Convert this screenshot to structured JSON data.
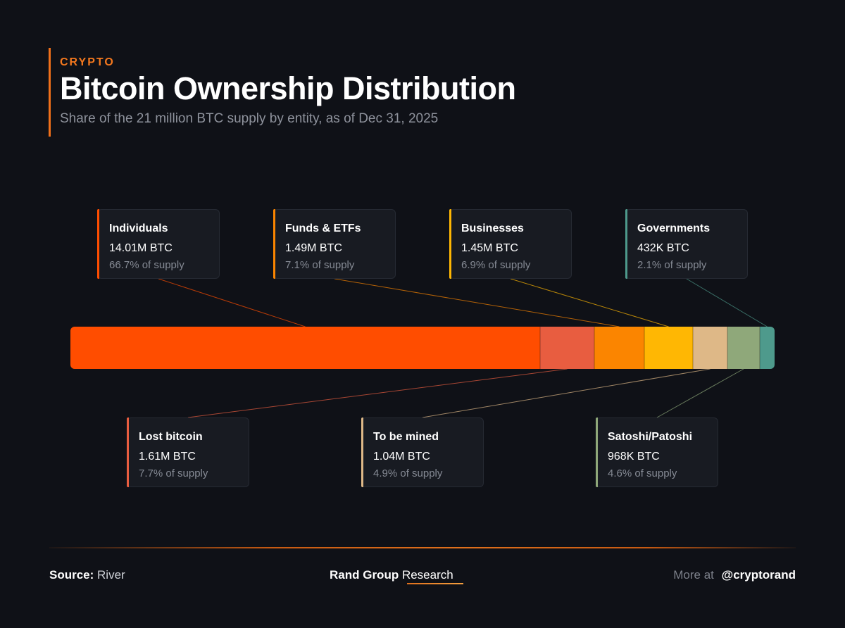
{
  "header": {
    "kicker": "CRYPTO",
    "title": "Bitcoin Ownership Distribution",
    "subtitle": "Share of the 21 million BTC supply by entity, as of Dec 31, 2025"
  },
  "chart_data": {
    "type": "bar",
    "orientation": "horizontal-stacked",
    "total_supply_btc_millions": 21,
    "segments": [
      {
        "name": "Individuals",
        "amount": "14.01M BTC",
        "share_label": "66.7% of supply",
        "percent": 66.7,
        "color": "#ff4d00"
      },
      {
        "name": "Lost bitcoin",
        "amount": "1.61M BTC",
        "share_label": "7.7% of supply",
        "percent": 7.7,
        "color": "#e85d40"
      },
      {
        "name": "Funds & ETFs",
        "amount": "1.49M BTC",
        "share_label": "7.1% of supply",
        "percent": 7.1,
        "color": "#fb8500"
      },
      {
        "name": "Businesses",
        "amount": "1.45M BTC",
        "share_label": "6.9% of supply",
        "percent": 6.9,
        "color": "#ffb703"
      },
      {
        "name": "To be mined",
        "amount": "1.04M BTC",
        "share_label": "4.9% of supply",
        "percent": 4.9,
        "color": "#deb887"
      },
      {
        "name": "Satoshi/Patoshi",
        "amount": "968K BTC",
        "share_label": "4.6% of supply",
        "percent": 4.6,
        "color": "#8fa87a"
      },
      {
        "name": "Governments",
        "amount": "432K BTC",
        "share_label": "2.1% of supply",
        "percent": 2.1,
        "color": "#4e9a8c"
      }
    ]
  },
  "footer": {
    "source_label": "Source:",
    "source_value": "River",
    "brand_bold": "Rand Group",
    "brand_regular": "Research",
    "more_label": "More at",
    "more_handle": "@cryptorand"
  }
}
